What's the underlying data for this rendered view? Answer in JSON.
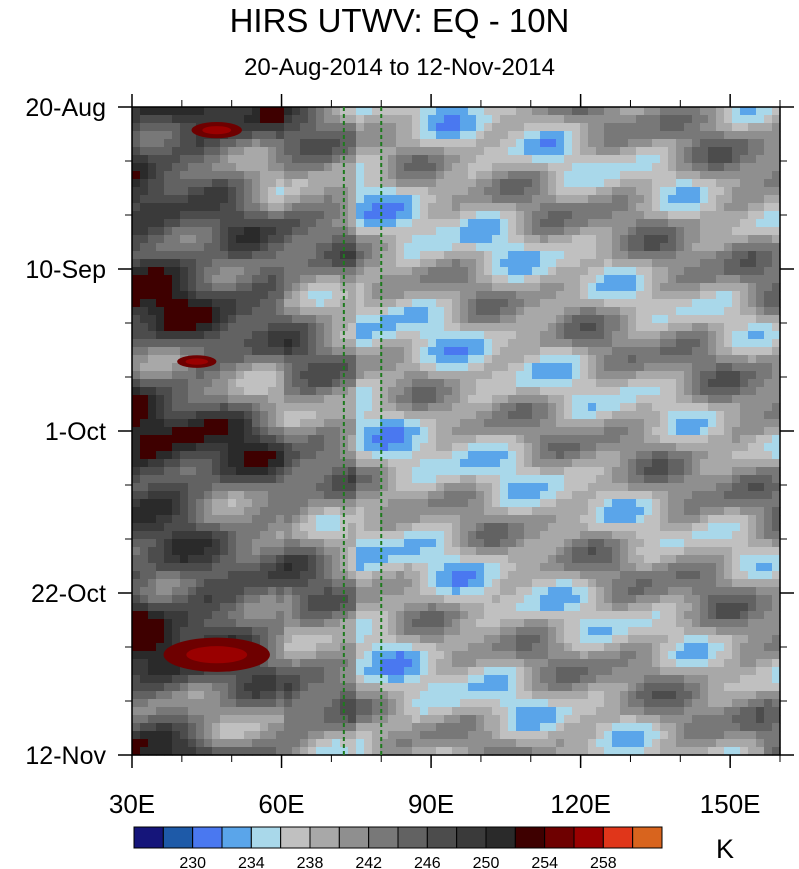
{
  "chart_data": {
    "type": "heatmap",
    "title": "HIRS UTWV: EQ - 10N",
    "subtitle": "20-Aug-2014 to 12-Nov-2014",
    "x_axis": {
      "range": [
        30,
        160
      ],
      "ticks": [
        30,
        60,
        90,
        120,
        150
      ],
      "tick_labels": [
        "30E",
        "60E",
        "90E",
        "120E",
        "150E"
      ],
      "minor_step": 10
    },
    "y_axis": {
      "range": [
        "2014-08-20",
        "2014-11-12"
      ],
      "ticks": [
        "2014-08-20",
        "2014-09-10",
        "2014-10-01",
        "2014-10-22",
        "2014-11-12"
      ],
      "tick_labels": [
        "20-Aug",
        "10-Sep",
        "1-Oct",
        "22-Oct",
        "12-Nov"
      ],
      "reversed": true
    },
    "reference_lines": [
      {
        "axis": "x",
        "value": 72.5,
        "color": "#1e7a1e",
        "style": "dashed"
      },
      {
        "axis": "x",
        "value": 80,
        "color": "#1e7a1e",
        "style": "dashed"
      }
    ],
    "colorbar": {
      "units": "K",
      "colors": [
        "#15157a",
        "#1e5aa8",
        "#4a78f0",
        "#5aa5ea",
        "#a9d8ea",
        "#c0c0c0",
        "#a8a8a8",
        "#8f8f8f",
        "#787878",
        "#626262",
        "#4c4c4c",
        "#3a3a3a",
        "#2a2a2a",
        "#3e0000",
        "#6e0000",
        "#9a0000",
        "#e0361a",
        "#d8641e"
      ],
      "labels": [
        "230",
        "234",
        "238",
        "242",
        "246",
        "250",
        "254",
        "258"
      ],
      "label_boundary_index": [
        2,
        4,
        6,
        8,
        10,
        12,
        14,
        16
      ]
    },
    "field_summary": "brightness temperature field; warm dark bands (246-258 K) dominate 30E-70E, cooler blue patches (230-238 K) dominate 75E-160E, pattern oriented diagonally"
  }
}
